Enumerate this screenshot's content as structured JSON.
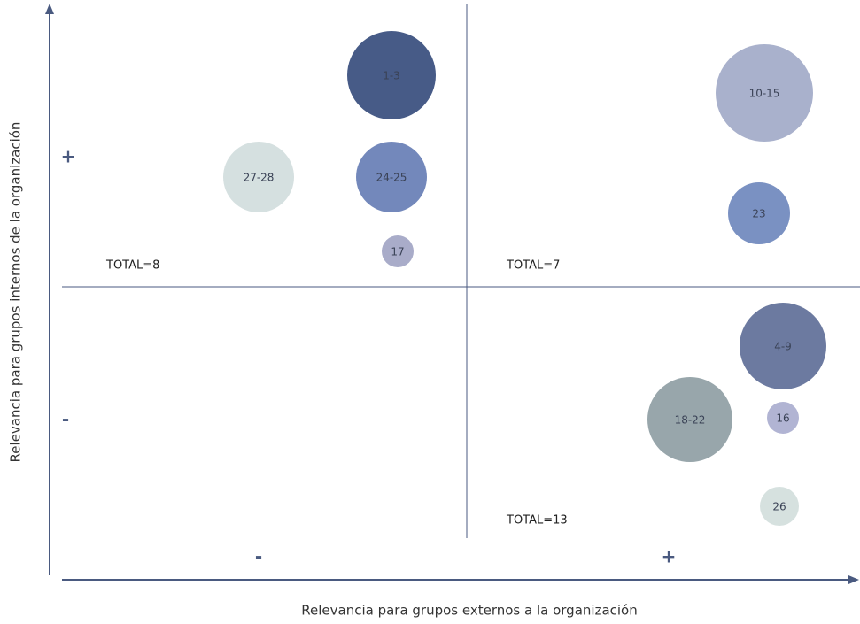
{
  "y_axis": {
    "label": "Relevancia para grupos internos de la organización",
    "high": "+",
    "low": "-"
  },
  "x_axis": {
    "label": "Relevancia para grupos externos a la organización",
    "low": "-",
    "high": "+"
  },
  "quadrants": [
    {
      "total": "TOTAL=8"
    },
    {
      "total": "TOTAL=7"
    },
    {
      "total": "TOTAL=13"
    }
  ],
  "nodes": [
    {
      "label": "1-3"
    },
    {
      "label": "10-15"
    },
    {
      "label": "27-28"
    },
    {
      "label": "24-25"
    },
    {
      "label": "23"
    },
    {
      "label": "17"
    },
    {
      "label": "4-9"
    },
    {
      "label": "18-22"
    },
    {
      "label": "16"
    },
    {
      "label": "26"
    }
  ]
}
